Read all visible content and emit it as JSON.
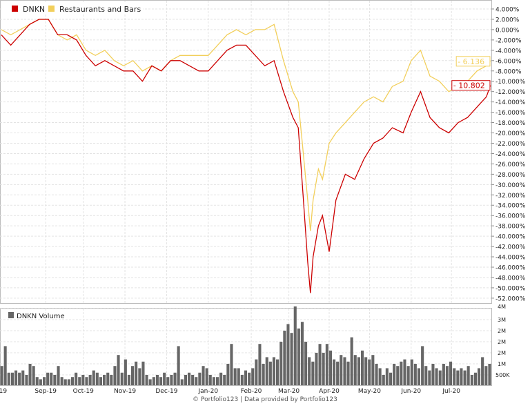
{
  "chart_data": [
    {
      "type": "line",
      "legend": {
        "placement": "top-left",
        "entries": [
          "DNKN",
          "Restaurants and Bars"
        ]
      },
      "y_axis": {
        "side": "right",
        "ylim": [
          -53,
          5
        ],
        "ticks": [
          "4.000%",
          "2.000%",
          "0.000%",
          "-2.000%",
          "-4.000%",
          "-6.000%",
          "-8.000%",
          "-10.000%",
          "-12.000%",
          "-14.000%",
          "-16.000%",
          "-18.000%",
          "-20.000%",
          "-22.000%",
          "-24.000%",
          "-26.000%",
          "-28.000%",
          "-30.000%",
          "-32.000%",
          "-34.000%",
          "-36.000%",
          "-38.000%",
          "-40.000%",
          "-42.000%",
          "-44.000%",
          "-46.000%",
          "-48.000%",
          "-50.000%",
          "-52.000%"
        ],
        "tick_values": [
          4,
          2,
          0,
          -2,
          -4,
          -6,
          -8,
          -10,
          -12,
          -14,
          -16,
          -18,
          -20,
          -22,
          -24,
          -26,
          -28,
          -30,
          -32,
          -34,
          -36,
          -38,
          -40,
          -42,
          -44,
          -46,
          -48,
          -50,
          -52
        ]
      },
      "grid": true,
      "x": [
        "2019-08-01",
        "2019-08-08",
        "2019-08-15",
        "2019-08-22",
        "2019-08-29",
        "2019-09-05",
        "2019-09-12",
        "2019-09-19",
        "2019-09-26",
        "2019-10-03",
        "2019-10-10",
        "2019-10-17",
        "2019-10-24",
        "2019-10-31",
        "2019-11-07",
        "2019-11-14",
        "2019-11-21",
        "2019-11-28",
        "2019-12-05",
        "2019-12-12",
        "2019-12-19",
        "2019-12-26",
        "2020-01-02",
        "2020-01-09",
        "2020-01-16",
        "2020-01-23",
        "2020-01-30",
        "2020-02-06",
        "2020-02-13",
        "2020-02-20",
        "2020-02-27",
        "2020-03-05",
        "2020-03-09",
        "2020-03-12",
        "2020-03-16",
        "2020-03-18",
        "2020-03-20",
        "2020-03-24",
        "2020-03-27",
        "2020-04-01",
        "2020-04-06",
        "2020-04-13",
        "2020-04-20",
        "2020-04-27",
        "2020-05-04",
        "2020-05-11",
        "2020-05-18",
        "2020-05-26",
        "2020-06-01",
        "2020-06-08",
        "2020-06-15",
        "2020-06-22",
        "2020-06-29",
        "2020-07-06",
        "2020-07-13",
        "2020-07-20",
        "2020-07-27",
        "2020-07-30"
      ],
      "series": [
        {
          "name": "DNKN",
          "color": "#cc0000",
          "values": [
            -1,
            -3,
            -1,
            1,
            2,
            2,
            -1,
            -1,
            -2,
            -5,
            -7,
            -6,
            -7,
            -8,
            -8,
            -10,
            -7,
            -8,
            -6,
            -6,
            -7,
            -8,
            -8,
            -6,
            -4,
            -3,
            -3,
            -5,
            -7,
            -6,
            -12,
            -17,
            -19,
            -30,
            -45,
            -51,
            -44,
            -38,
            -36,
            -43,
            -33,
            -28,
            -29,
            -25,
            -22,
            -21,
            -19,
            -20,
            -16,
            -12,
            -17,
            -19,
            -20,
            -18,
            -17,
            -15,
            -13,
            -10.802
          ]
        },
        {
          "name": "Restaurants and Bars",
          "color": "#f2cf5b",
          "values": [
            0,
            -1,
            0,
            1,
            2,
            2,
            -1,
            -2,
            -1,
            -4,
            -5,
            -4,
            -6,
            -7,
            -6,
            -8,
            -7,
            -8,
            -6,
            -5,
            -5,
            -5,
            -5,
            -3,
            -1,
            0,
            -1,
            0,
            0,
            1,
            -6,
            -12,
            -14,
            -22,
            -33,
            -39,
            -33,
            -27,
            -29,
            -22,
            -20,
            -18,
            -16,
            -14,
            -13,
            -14,
            -11,
            -10,
            -6,
            -4,
            -9,
            -10,
            -12,
            -11,
            -10,
            -8,
            -7,
            -6.136
          ]
        }
      ],
      "last_value_labels": [
        {
          "series": "Restaurants and Bars",
          "text": "- 6.136"
        },
        {
          "series": "DNKN",
          "text": "- 10.802"
        }
      ]
    },
    {
      "type": "bar",
      "legend": {
        "placement": "top-left",
        "entries": [
          "DNKN Volume"
        ]
      },
      "color": "#666666",
      "y_axis": {
        "side": "right",
        "ticks": [
          "4M",
          "3M",
          "2M",
          "2M",
          "2M",
          "1M",
          "500K"
        ],
        "tick_values": [
          3.5,
          3.0,
          2.5,
          2.0,
          1.5,
          1.0,
          0.5
        ],
        "unit": "millions shares"
      },
      "values": [
        0.9,
        1.8,
        0.6,
        0.6,
        0.7,
        0.6,
        0.7,
        0.5,
        1.0,
        0.9,
        0.4,
        0.3,
        0.4,
        0.6,
        0.6,
        0.5,
        0.9,
        0.4,
        0.3,
        0.3,
        0.4,
        0.6,
        0.4,
        0.5,
        0.4,
        0.5,
        0.7,
        0.6,
        0.4,
        0.5,
        0.6,
        0.5,
        0.9,
        1.4,
        0.6,
        1.2,
        0.5,
        0.9,
        1.1,
        0.8,
        1.1,
        0.5,
        0.3,
        0.4,
        0.5,
        0.4,
        0.6,
        0.4,
        0.5,
        0.6,
        1.8,
        0.3,
        0.5,
        0.6,
        0.5,
        0.4,
        0.6,
        0.9,
        0.8,
        0.5,
        0.4,
        0.4,
        0.6,
        0.5,
        1.0,
        1.9,
        0.8,
        0.8,
        0.5,
        0.7,
        0.6,
        0.8,
        1.2,
        1.9,
        1.0,
        1.3,
        1.1,
        1.3,
        1.2,
        2.0,
        2.5,
        2.8,
        2.4,
        3.6,
        2.6,
        2.9,
        2.0,
        1.3,
        1.1,
        1.5,
        1.9,
        1.5,
        1.9,
        1.6,
        1.2,
        1.1,
        1.4,
        1.3,
        1.1,
        2.2,
        1.4,
        1.3,
        1.6,
        1.3,
        1.2,
        1.4,
        1.0,
        0.8,
        0.5,
        0.8,
        0.6,
        1.0,
        0.9,
        1.1,
        1.2,
        0.9,
        1.2,
        1.0,
        0.8,
        1.8,
        0.9,
        0.7,
        1.0,
        0.8,
        0.7,
        1.0,
        0.9,
        1.1,
        0.8,
        0.7,
        0.8,
        0.7,
        0.9,
        0.5,
        0.6,
        0.8,
        1.3,
        0.9,
        1.0
      ]
    }
  ],
  "x_axis": {
    "ticks": [
      "Aug-19",
      "Sep-19",
      "Oct-19",
      "Nov-19",
      "Dec-19",
      "Jan-20",
      "Feb-20",
      "Mar-20",
      "Apr-20",
      "May-20",
      "Jun-20",
      "Jul-20"
    ],
    "tick_dates": [
      "2019-08-01",
      "2019-09-03",
      "2019-10-01",
      "2019-11-01",
      "2019-12-02",
      "2020-01-02",
      "2020-02-03",
      "2020-03-02",
      "2020-04-01",
      "2020-05-01",
      "2020-06-01",
      "2020-07-01"
    ]
  },
  "footer": "© Portfolio123 | Data provided by Portfolio123"
}
